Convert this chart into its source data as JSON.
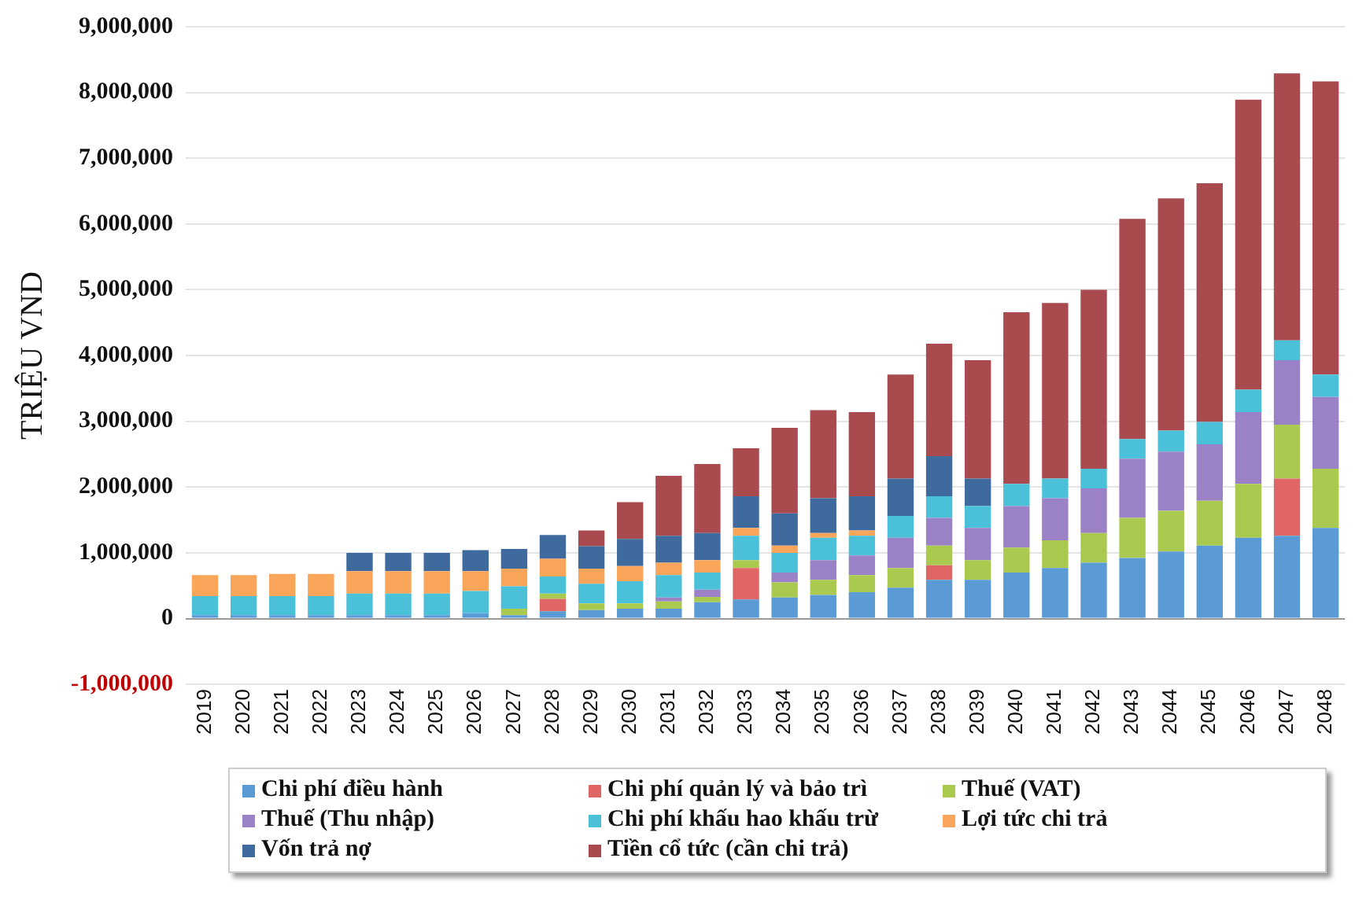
{
  "chart_data": {
    "type": "bar",
    "stacked": true,
    "ylabel": "TRIỆU VND",
    "categories": [
      "2019",
      "2020",
      "2021",
      "2022",
      "2023",
      "2024",
      "2025",
      "2026",
      "2027",
      "2028",
      "2029",
      "2030",
      "2031",
      "2032",
      "2033",
      "2034",
      "2035",
      "2036",
      "2037",
      "2038",
      "2039",
      "2040",
      "2041",
      "2042",
      "2043",
      "2044",
      "2045",
      "2046",
      "2047",
      "2048"
    ],
    "series": [
      {
        "name": "Chi phí điều hành",
        "color": "#5b9bd5",
        "values": [
          50000,
          50000,
          50000,
          50000,
          50000,
          50000,
          50000,
          80000,
          50000,
          110000,
          130000,
          150000,
          150000,
          250000,
          290000,
          320000,
          360000,
          400000,
          470000,
          590000,
          590000,
          700000,
          770000,
          850000,
          920000,
          1020000,
          1110000,
          1230000,
          1260000,
          1380000
        ]
      },
      {
        "name": "Chi phí quản lý và bảo trì",
        "color": "#e06666",
        "values": [
          0,
          0,
          0,
          0,
          0,
          0,
          0,
          0,
          0,
          190000,
          0,
          0,
          0,
          0,
          480000,
          0,
          0,
          0,
          0,
          220000,
          0,
          0,
          0,
          0,
          0,
          0,
          0,
          0,
          870000,
          0
        ]
      },
      {
        "name": "Thuế (VAT)",
        "color": "#a9c94f",
        "values": [
          0,
          0,
          0,
          0,
          0,
          0,
          0,
          0,
          100000,
          80000,
          100000,
          80000,
          110000,
          80000,
          120000,
          230000,
          230000,
          260000,
          300000,
          300000,
          300000,
          380000,
          420000,
          450000,
          610000,
          620000,
          680000,
          820000,
          820000,
          900000
        ]
      },
      {
        "name": "Thuế (Thu nhập)",
        "color": "#9b82c6",
        "values": [
          0,
          0,
          0,
          0,
          0,
          0,
          0,
          0,
          0,
          0,
          0,
          0,
          60000,
          110000,
          0,
          150000,
          300000,
          300000,
          460000,
          420000,
          490000,
          630000,
          640000,
          680000,
          900000,
          900000,
          860000,
          1090000,
          980000,
          1090000
        ]
      },
      {
        "name": "Chi phí khấu hao khấu trừ",
        "color": "#4bc0d9",
        "values": [
          290000,
          290000,
          290000,
          290000,
          330000,
          330000,
          330000,
          340000,
          340000,
          260000,
          300000,
          340000,
          340000,
          260000,
          370000,
          300000,
          340000,
          300000,
          330000,
          330000,
          330000,
          340000,
          300000,
          300000,
          300000,
          320000,
          340000,
          340000,
          300000,
          340000
        ]
      },
      {
        "name": "Lợi tức chi trả",
        "color": "#f9a55a",
        "values": [
          320000,
          320000,
          340000,
          340000,
          340000,
          340000,
          340000,
          300000,
          270000,
          270000,
          230000,
          230000,
          190000,
          190000,
          120000,
          110000,
          70000,
          80000,
          0,
          0,
          0,
          0,
          0,
          0,
          0,
          0,
          0,
          0,
          0,
          0
        ]
      },
      {
        "name": "Vốn trả nợ",
        "color": "#3f6a9e",
        "values": [
          0,
          0,
          0,
          0,
          280000,
          280000,
          280000,
          320000,
          300000,
          360000,
          340000,
          410000,
          410000,
          410000,
          480000,
          490000,
          530000,
          520000,
          570000,
          610000,
          420000,
          0,
          0,
          0,
          0,
          0,
          0,
          0,
          0,
          0
        ]
      },
      {
        "name": "Tiền cổ tức (cần chi trả)",
        "color": "#a84a4e",
        "values": [
          0,
          0,
          0,
          0,
          0,
          0,
          0,
          0,
          0,
          0,
          240000,
          560000,
          910000,
          1050000,
          730000,
          1300000,
          1340000,
          1280000,
          1580000,
          1710000,
          1800000,
          2610000,
          2670000,
          2720000,
          3350000,
          3530000,
          3630000,
          4410000,
          4060000,
          4460000
        ]
      }
    ],
    "ylim": [
      -1000000,
      9000000
    ],
    "yticks": [
      {
        "value": -1000000,
        "label": "-1,000,000"
      },
      0,
      {
        "value": 1000000,
        "label": "1,000,000"
      },
      {
        "value": 2000000,
        "label": "2,000,000"
      },
      {
        "value": 3000000,
        "label": "3,000,000"
      },
      {
        "value": 4000000,
        "label": "4,000,000"
      },
      {
        "value": 5000000,
        "label": "5,000,000"
      },
      {
        "value": 6000000,
        "label": "6,000,000"
      },
      {
        "value": 7000000,
        "label": "7,000,000"
      },
      {
        "value": 8000000,
        "label": "8,000,000"
      },
      {
        "value": 9000000,
        "label": "9,000,000"
      }
    ],
    "grid": "y",
    "legend": "bottom"
  }
}
